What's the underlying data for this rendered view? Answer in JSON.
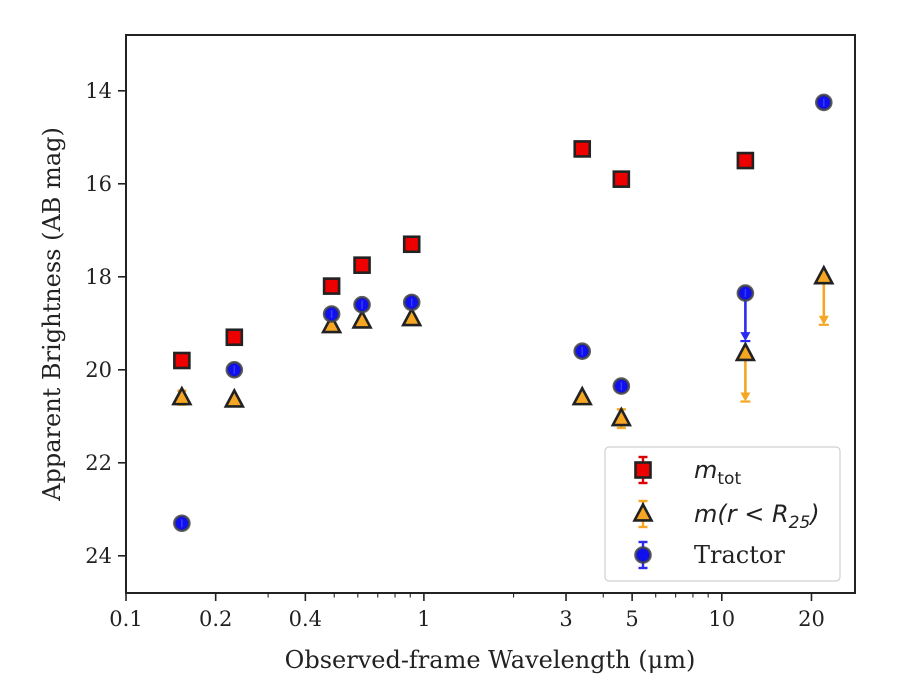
{
  "chart_data": {
    "type": "scatter",
    "xlabel": "Observed-frame Wavelength (μm)",
    "ylabel": "Apparent Brightness (AB mag)",
    "xscale": "log",
    "xlim": [
      0.1,
      28
    ],
    "ylim": [
      24.8,
      12.8
    ],
    "y_inverted": true,
    "grid": false,
    "legend_position": "bottom-right",
    "xticks": [
      0.1,
      0.2,
      0.4,
      1,
      3,
      5,
      10,
      20
    ],
    "xtick_labels": [
      "0.1",
      "0.2",
      "0.4",
      "1",
      "3",
      "5",
      "10",
      "20"
    ],
    "yticks": [
      14,
      16,
      18,
      20,
      22,
      24
    ],
    "ytick_labels": [
      "14",
      "16",
      "18",
      "20",
      "22",
      "24"
    ],
    "series": [
      {
        "name": "m_tot",
        "label_main": "m",
        "label_sub": "tot",
        "marker": "square",
        "color": "#ee0000",
        "errcolor": "#dd0000",
        "points": [
          {
            "x": 0.154,
            "y": 19.8
          },
          {
            "x": 0.231,
            "y": 19.3
          },
          {
            "x": 0.49,
            "y": 18.2
          },
          {
            "x": 0.62,
            "y": 17.75
          },
          {
            "x": 0.91,
            "y": 17.3
          },
          {
            "x": 3.4,
            "y": 15.25
          },
          {
            "x": 4.6,
            "y": 15.9
          },
          {
            "x": 12.0,
            "y": 15.5
          }
        ]
      },
      {
        "name": "m(r < R25)",
        "label_main": "m(r < R",
        "label_sub": "25",
        "label_close": ")",
        "marker": "triangle",
        "color": "#f5a623",
        "errcolor": "#f5a623",
        "points": [
          {
            "x": 0.154,
            "y": 20.6,
            "err": 0.15
          },
          {
            "x": 0.231,
            "y": 20.65
          },
          {
            "x": 0.49,
            "y": 19.05
          },
          {
            "x": 0.62,
            "y": 18.95
          },
          {
            "x": 0.91,
            "y": 18.9
          },
          {
            "x": 3.4,
            "y": 20.6
          },
          {
            "x": 4.6,
            "y": 21.05,
            "err": 0.2
          },
          {
            "x": 12.0,
            "y": 19.65,
            "upper_limit": true
          },
          {
            "x": 22.0,
            "y": 18.0,
            "upper_limit": true
          }
        ]
      },
      {
        "name": "Tractor",
        "label_main": "Tractor",
        "marker": "circle",
        "color": "#1010ee",
        "errcolor": "#2a2af0",
        "points": [
          {
            "x": 0.154,
            "y": 23.3
          },
          {
            "x": 0.231,
            "y": 20.0
          },
          {
            "x": 0.49,
            "y": 18.8
          },
          {
            "x": 0.62,
            "y": 18.6
          },
          {
            "x": 0.91,
            "y": 18.55
          },
          {
            "x": 3.4,
            "y": 19.6
          },
          {
            "x": 4.6,
            "y": 20.35
          },
          {
            "x": 12.0,
            "y": 18.35,
            "upper_limit": true
          },
          {
            "x": 22.0,
            "y": 14.25
          }
        ]
      }
    ]
  }
}
